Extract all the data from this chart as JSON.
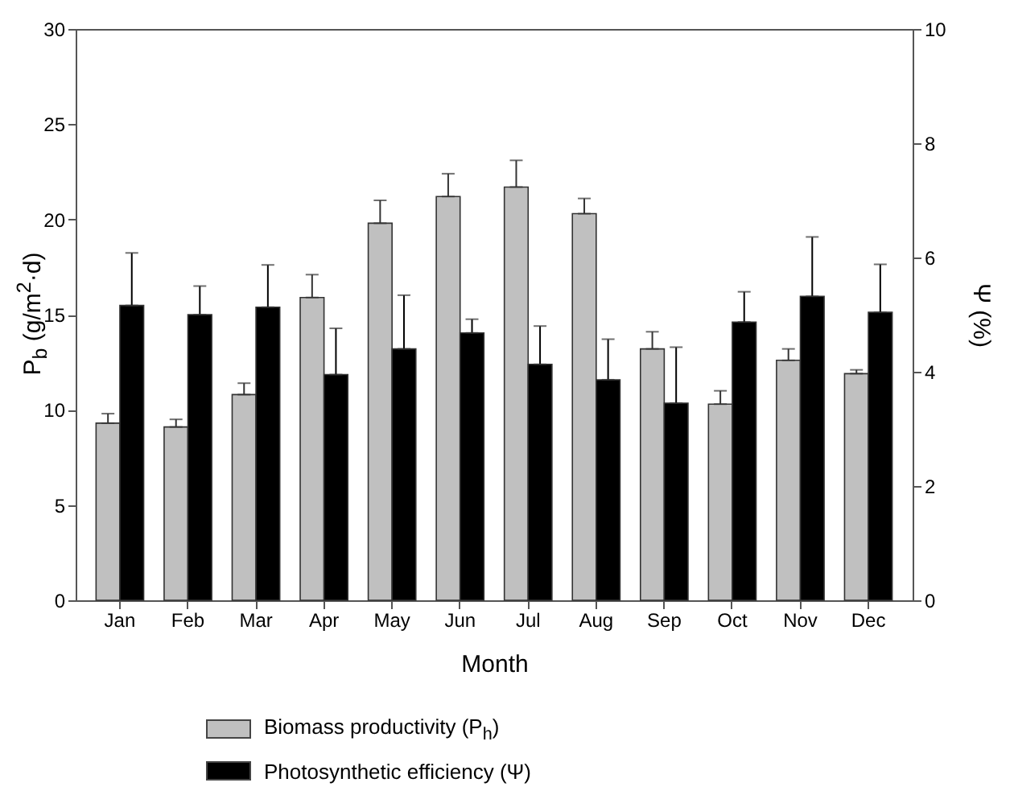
{
  "chart_data": {
    "type": "bar",
    "xlabel": "Month",
    "ylabel": "P$_{b}$ (g/m$^{2}$·d)",
    "y2label": "Ψ (%)",
    "categories": [
      "Jan",
      "Feb",
      "Mar",
      "Apr",
      "May",
      "Jun",
      "Jul",
      "Aug",
      "Sep",
      "Oct",
      "Nov",
      "Dec"
    ],
    "ylim": [
      0,
      30
    ],
    "yticks": [
      0,
      5,
      10,
      15,
      20,
      25,
      30
    ],
    "y2lim": [
      0,
      10
    ],
    "y2ticks": [
      0,
      2,
      4,
      6,
      8,
      10
    ],
    "grid": false,
    "legend": "bottom",
    "series": [
      {
        "name": "Biomass productivity (P$_{h}$)",
        "color": "#c0c0c0",
        "values": [
          9.3,
          9.1,
          10.8,
          15.9,
          19.8,
          21.2,
          21.7,
          20.3,
          13.2,
          10.3,
          12.6,
          11.9
        ],
        "errors": [
          [
            9.3,
            9.8
          ],
          [
            9.1,
            9.5
          ],
          [
            10.8,
            11.4
          ],
          [
            15.9,
            17.1
          ],
          [
            19.8,
            21.0
          ],
          [
            21.2,
            22.4
          ],
          [
            21.7,
            23.1
          ],
          [
            20.3,
            21.1
          ],
          [
            13.2,
            14.1
          ],
          [
            10.3,
            11.0
          ],
          [
            12.6,
            13.2
          ],
          [
            11.9,
            12.1
          ]
        ]
      },
      {
        "name": "Photosynthetic efficiency (Ψ)",
        "color": "#000000",
        "axis": "y2",
        "values": [
          5.16,
          5.0,
          5.13,
          3.95,
          4.4,
          4.68,
          4.13,
          3.86,
          3.45,
          4.87,
          5.32,
          5.04
        ],
        "errors": [
          [
            5.16,
            6.08
          ],
          [
            5.0,
            5.5
          ],
          [
            5.13,
            5.87
          ],
          [
            3.95,
            4.76
          ],
          [
            4.4,
            5.34
          ],
          [
            4.68,
            4.92
          ],
          [
            4.13,
            4.8
          ],
          [
            3.86,
            4.57
          ],
          [
            3.45,
            4.43
          ],
          [
            4.87,
            5.4
          ],
          [
            5.32,
            6.36
          ],
          [
            5.04,
            5.88
          ]
        ]
      }
    ]
  }
}
